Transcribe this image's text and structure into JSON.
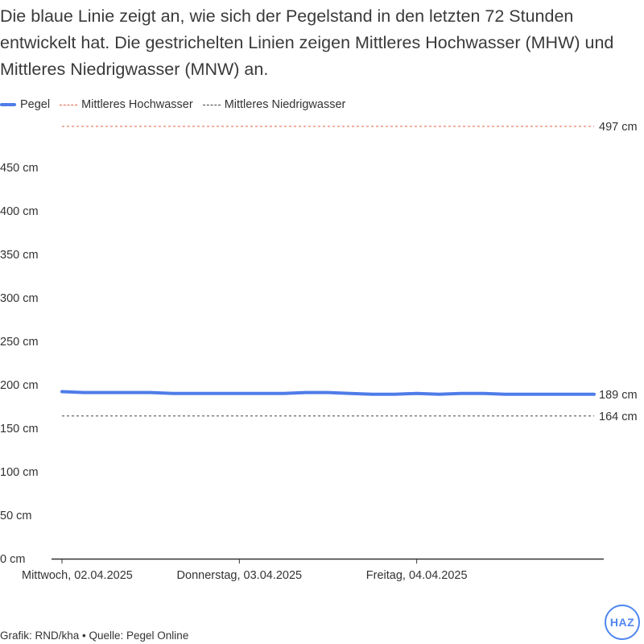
{
  "subtitle": "Die blaue Linie zeigt an, wie sich der Pegelstand in den letzten 72 Stunden entwickelt hat. Die gestrichelten Linien zeigen Mittleres Hochwasser (MHW) und Mittleres Niedrigwasser (MNW) an.",
  "legend": {
    "pegel": "Pegel",
    "mhw": "Mittleres Hochwasser",
    "mnw": "Mittleres Niedrigwasser"
  },
  "colors": {
    "pegel": "#4f7ce8",
    "mhw": "#e06040",
    "mnw": "#444444",
    "logo": "#4f86f0"
  },
  "footer": "Grafik: RND/kha • Quelle: Pegel Online",
  "logo_text": "HAZ",
  "chart_data": {
    "type": "line",
    "title": "",
    "xlabel": "",
    "ylabel": "",
    "ylim": [
      0,
      497
    ],
    "y_ticks": [
      0,
      50,
      100,
      150,
      200,
      250,
      300,
      350,
      400,
      450
    ],
    "y_tick_labels": [
      "0 cm",
      "50 cm",
      "100 cm",
      "150 cm",
      "200 cm",
      "250 cm",
      "300 cm",
      "350 cm",
      "400 cm",
      "450 cm"
    ],
    "xlim": [
      "2025-04-02 00:00",
      "2025-04-04 24:00"
    ],
    "x_ticks": [
      "2025-04-02 00:00",
      "2025-04-03 00:00",
      "2025-04-04 00:00"
    ],
    "x_tick_labels": [
      "Mittwoch, 02.04.2025",
      "Donnerstag, 03.04.2025",
      "Freitag, 04.04.2025"
    ],
    "grid": false,
    "legend_position": "top-left",
    "series": [
      {
        "name": "Pegel",
        "x": [
          "2025-04-02 00:00",
          "2025-04-02 03:00",
          "2025-04-02 06:00",
          "2025-04-02 09:00",
          "2025-04-02 12:00",
          "2025-04-02 15:00",
          "2025-04-02 18:00",
          "2025-04-02 21:00",
          "2025-04-03 00:00",
          "2025-04-03 03:00",
          "2025-04-03 06:00",
          "2025-04-03 09:00",
          "2025-04-03 12:00",
          "2025-04-03 15:00",
          "2025-04-03 18:00",
          "2025-04-03 21:00",
          "2025-04-04 00:00",
          "2025-04-04 03:00",
          "2025-04-04 06:00",
          "2025-04-04 09:00",
          "2025-04-04 12:00",
          "2025-04-04 15:00",
          "2025-04-04 18:00",
          "2025-04-04 21:00",
          "2025-04-04 24:00"
        ],
        "values": [
          192,
          191,
          191,
          191,
          191,
          190,
          190,
          190,
          190,
          190,
          190,
          191,
          191,
          190,
          189,
          189,
          190,
          189,
          190,
          190,
          189,
          189,
          189,
          189,
          189
        ]
      }
    ],
    "reference_lines": [
      {
        "name": "Mittleres Hochwasser",
        "value": 497,
        "label": "497 cm"
      },
      {
        "name": "Mittleres Niedrigwasser",
        "value": 164,
        "label": "164 cm"
      }
    ],
    "end_label": "189 cm"
  }
}
